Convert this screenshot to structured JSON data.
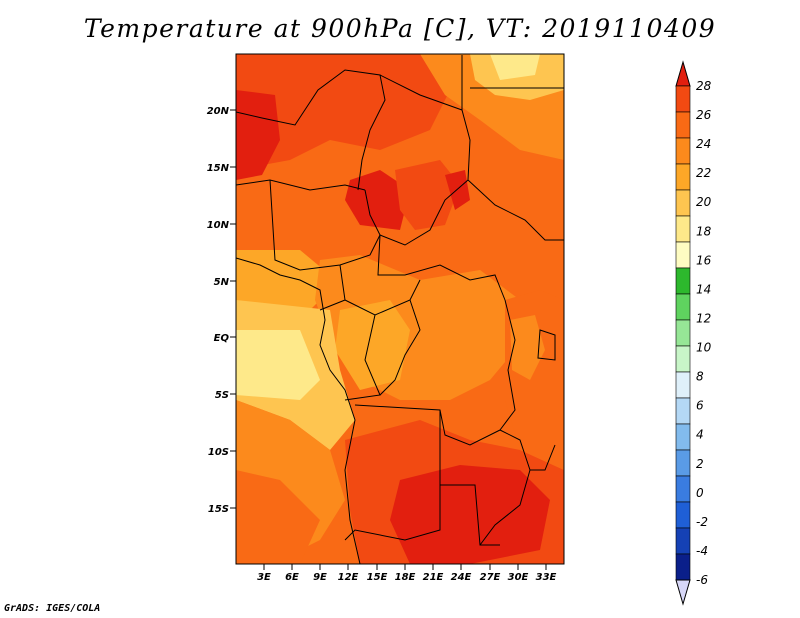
{
  "title": "Temperature at 900hPa [C], VT: 2019110409",
  "credit": "GrADS: IGES/COLA",
  "map": {
    "lat_labels": [
      "20N",
      "15N",
      "10N",
      "5N",
      "EQ",
      "5S",
      "10S",
      "15S"
    ],
    "lon_labels": [
      "3E",
      "6E",
      "9E",
      "12E",
      "15E",
      "18E",
      "21E",
      "24E",
      "27E",
      "30E",
      "33E"
    ]
  },
  "colorbar": {
    "levels": [
      "28",
      "26",
      "24",
      "22",
      "20",
      "18",
      "16",
      "14",
      "12",
      "10",
      "8",
      "6",
      "4",
      "2",
      "0",
      "-2",
      "-4",
      "-6"
    ],
    "colors": [
      "#e21f0f",
      "#f24a12",
      "#f96a15",
      "#fc8a1c",
      "#fda727",
      "#fec550",
      "#fee98a",
      "#fefcc2",
      "#2db82d",
      "#5fd35f",
      "#96e696",
      "#c8f5c8",
      "#dff0fa",
      "#b4d8f5",
      "#82bbed",
      "#5a9be6",
      "#3a7ce0",
      "#1f5fd6",
      "#1541b5",
      "#0a1f8a",
      "#d8d8f8"
    ]
  }
}
